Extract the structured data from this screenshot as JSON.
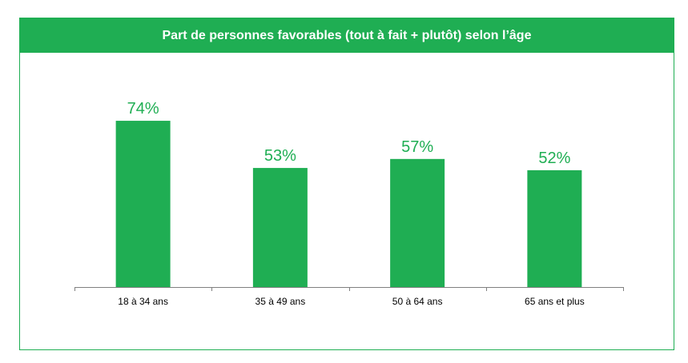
{
  "colors": {
    "accent": "#1fae53",
    "axis": "#808080",
    "text": "#000000"
  },
  "chart_data": {
    "type": "bar",
    "title": "Part de personnes favorables (tout à fait + plutôt) selon l’âge",
    "categories": [
      "18 à 34 ans",
      "35 à 49 ans",
      "50 à 64 ans",
      "65 ans et plus"
    ],
    "values": [
      74,
      53,
      57,
      52
    ],
    "value_labels": [
      "74%",
      "53%",
      "57%",
      "52%"
    ],
    "xlabel": "",
    "ylabel": "",
    "ylim": [
      0,
      100
    ],
    "grid": false,
    "legend": "none"
  }
}
